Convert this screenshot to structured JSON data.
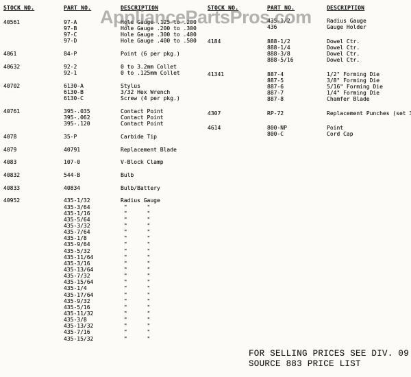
{
  "watermark": {
    "text": "AppliancePartsPros.com",
    "color": "#767676"
  },
  "colors": {
    "paper": "#fcfbf8",
    "ink": "#1d1d1d"
  },
  "headers": {
    "stock": "STOCK NO.",
    "part": "PART NO.",
    "description": "DESCRIPTION"
  },
  "left_column": {
    "groups": [
      {
        "stock": "40561",
        "items": [
          {
            "part": "97-A",
            "desc": "Hole Gauge .125 to .200"
          },
          {
            "part": "97-B",
            "desc": "Hole Gauge .200 to .300"
          },
          {
            "part": "97-C",
            "desc": "Hole Gauge .300 to .400"
          },
          {
            "part": "97-D",
            "desc": "Hole Gauge .400 to .500"
          }
        ]
      },
      {
        "stock": "4061",
        "items": [
          {
            "part": "84-P",
            "desc": "Point (6 per pkg.)"
          }
        ]
      },
      {
        "stock": "40632",
        "items": [
          {
            "part": "92-2",
            "desc": "0 to 3.2mm Collet"
          },
          {
            "part": "92-1",
            "desc": "0 to .125mm Collet"
          }
        ]
      },
      {
        "stock": "40702",
        "items": [
          {
            "part": "6130-A",
            "desc": "Stylus"
          },
          {
            "part": "6130-B",
            "desc": "3/32 Hex Wrench"
          },
          {
            "part": "6130-C",
            "desc": "Screw (4 per pkg.)"
          }
        ]
      },
      {
        "stock": "40761",
        "items": [
          {
            "part": "395-.035",
            "desc": "Contact Point"
          },
          {
            "part": "395-.062",
            "desc": "Contact Point"
          },
          {
            "part": "395-.120",
            "desc": "Contact Point"
          }
        ]
      },
      {
        "stock": "4078",
        "items": [
          {
            "part": "35-P",
            "desc": "Carbide Tip"
          }
        ]
      },
      {
        "stock": "4079",
        "items": [
          {
            "part": "40791",
            "desc": "Replacement Blade"
          }
        ]
      },
      {
        "stock": "4083",
        "items": [
          {
            "part": "107-0",
            "desc": "V-Block Clamp"
          }
        ]
      },
      {
        "stock": "40832",
        "items": [
          {
            "part": "544-B",
            "desc": "Bulb"
          }
        ]
      },
      {
        "stock": "40833",
        "items": [
          {
            "part": "40834",
            "desc": "Bulb/Battery"
          }
        ]
      },
      {
        "stock": "40952",
        "items": [
          {
            "part": "435-1/32",
            "desc": "Radius Gauge"
          },
          {
            "part": "435-3/64",
            "desc": " \"      \""
          },
          {
            "part": "435-1/16",
            "desc": " \"      \""
          },
          {
            "part": "435-5/64",
            "desc": " \"      \""
          },
          {
            "part": "435-3/32",
            "desc": " \"      \""
          },
          {
            "part": "435-7/64",
            "desc": " \"      \""
          },
          {
            "part": "435-1/8",
            "desc": " \"      \""
          },
          {
            "part": "435-9/64",
            "desc": " \"      \""
          },
          {
            "part": "435-5/32",
            "desc": " \"      \""
          },
          {
            "part": "435-11/64",
            "desc": " \"      \""
          },
          {
            "part": "435-3/16",
            "desc": " \"      \""
          },
          {
            "part": "435-13/64",
            "desc": " \"      \""
          },
          {
            "part": "435-7/32",
            "desc": " \"      \""
          },
          {
            "part": "435-15/64",
            "desc": " \"      \""
          },
          {
            "part": "435-1/4",
            "desc": " \"      \""
          },
          {
            "part": "435-17/64",
            "desc": " \"      \""
          },
          {
            "part": "435-9/32",
            "desc": " \"      \""
          },
          {
            "part": "435-5/16",
            "desc": " \"      \""
          },
          {
            "part": "435-11/32",
            "desc": " \"      \""
          },
          {
            "part": "435-3/8",
            "desc": " \"      \""
          },
          {
            "part": "435-13/32",
            "desc": " \"      \""
          },
          {
            "part": "435-7/16",
            "desc": " \"      \""
          },
          {
            "part": "435-15/32",
            "desc": " \"      \""
          }
        ]
      }
    ]
  },
  "right_column": {
    "groups": [
      {
        "stock": "",
        "items": [
          {
            "part": "435-1/2",
            "desc": "Radius Gauge"
          },
          {
            "part": "436",
            "desc": "Gauge Holder"
          }
        ]
      },
      {
        "stock": "4184",
        "items": [
          {
            "part": "888-1/2",
            "desc": "Dowel Ctr."
          },
          {
            "part": "888-1/4",
            "desc": "Dowel Ctr."
          },
          {
            "part": "888-3/8",
            "desc": "Dowel Ctr."
          },
          {
            "part": "888-5/16",
            "desc": "Dowel Ctr."
          }
        ]
      },
      {
        "stock": "41341",
        "items": [
          {
            "part": "887-4",
            "desc": "1/2\" Forming Die"
          },
          {
            "part": "887-5",
            "desc": "3/8\" Forming Die"
          },
          {
            "part": "887-6",
            "desc": "5/16\" Forming Die"
          },
          {
            "part": "887-7",
            "desc": "1/4\" Forming Die"
          },
          {
            "part": "887-8",
            "desc": "Chamfer Blade"
          }
        ]
      },
      {
        "stock": "4307",
        "items": [
          {
            "part": "RP-72",
            "desc": "Replacement Punches (set 3"
          }
        ]
      },
      {
        "stock": "4614",
        "items": [
          {
            "part": "800-NP",
            "desc": "Point"
          },
          {
            "part": "800-C",
            "desc": "Cord Cap"
          }
        ]
      }
    ]
  },
  "footer": {
    "line1": "FOR SELLING PRICES SEE DIV. 09",
    "line2": "SOURCE 883 PRICE LIST"
  }
}
